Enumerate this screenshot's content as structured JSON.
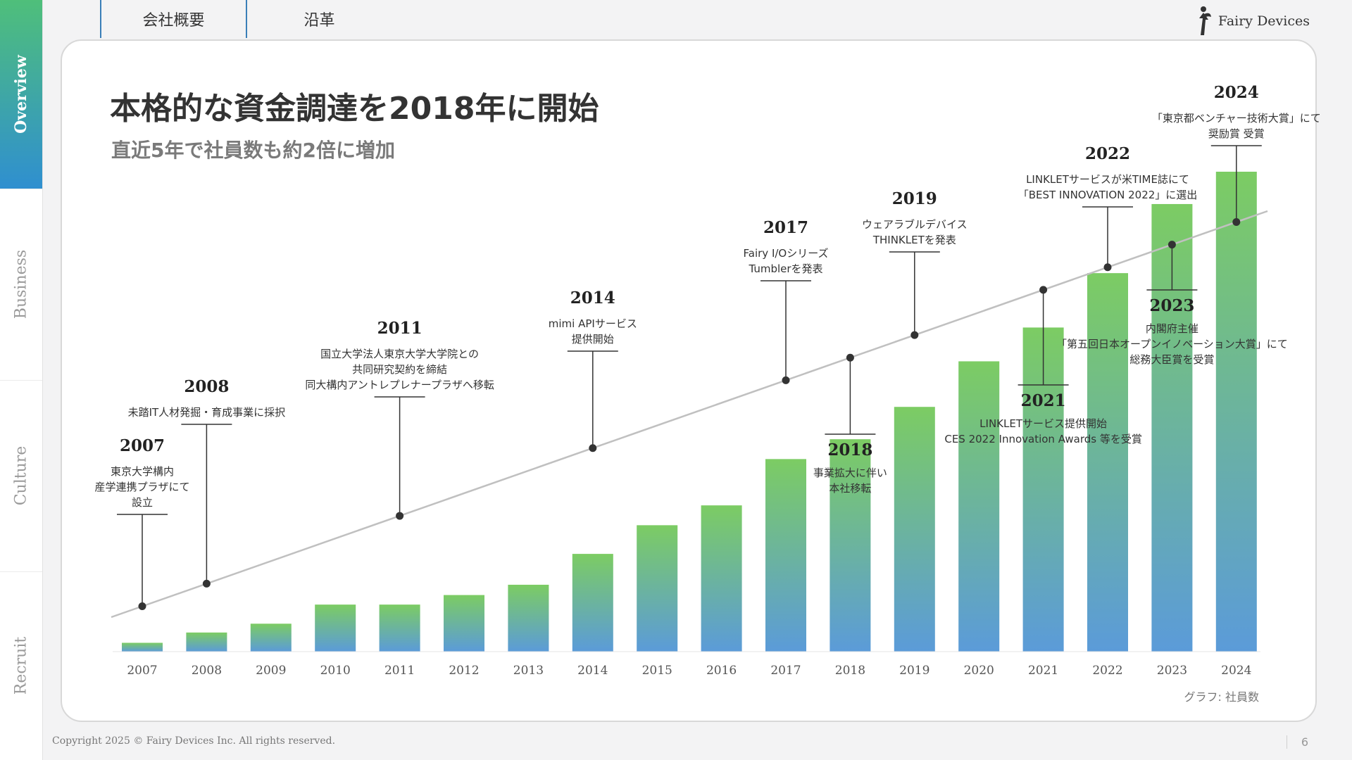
{
  "sidenav": {
    "items": [
      {
        "label": "Overview",
        "active": true
      },
      {
        "label": "Business",
        "active": false
      },
      {
        "label": "Culture",
        "active": false
      },
      {
        "label": "Recruit",
        "active": false
      }
    ]
  },
  "tabs": [
    {
      "label": "会社概要"
    },
    {
      "label": "沿革"
    }
  ],
  "logo": {
    "text": "Fairy Devices",
    "icon": "fairy-icon"
  },
  "slide": {
    "title": "本格的な資金調達を2018年に開始",
    "subtitle": "直近5年で社員数も約2倍に増加"
  },
  "chart_data": {
    "type": "bar",
    "categories": [
      "2007",
      "2008",
      "2009",
      "2010",
      "2011",
      "2012",
      "2013",
      "2014",
      "2015",
      "2016",
      "2017",
      "2018",
      "2019",
      "2020",
      "2021",
      "2022",
      "2023",
      "2024"
    ],
    "values": [
      12,
      26,
      38,
      64,
      64,
      77,
      91,
      133,
      172,
      199,
      262,
      289,
      333,
      395,
      441,
      515,
      609,
      653
    ],
    "ylim": [
      0,
      653
    ],
    "grid": false,
    "caption": "グラフ: 社員数",
    "colors": {
      "bar_top": "#7ccc63",
      "bar_bottom": "#5b9bd9",
      "trend_line": "#c0c0c0",
      "marker": "#333333"
    },
    "annotations": [
      {
        "year": "2007",
        "lines": [
          "東京大学構内",
          "産学連携プラザにて",
          "設立"
        ]
      },
      {
        "year": "2008",
        "lines": [
          "未踏IT人材発掘・育成事業に採択"
        ]
      },
      {
        "year": "2011",
        "lines": [
          "国立大学法人東京大学大学院との",
          "共同研究契約を締結",
          "同大構内アントレプレナープラザへ移転"
        ]
      },
      {
        "year": "2014",
        "lines": [
          "mimi APIサービス",
          "提供開始"
        ]
      },
      {
        "year": "2017",
        "lines": [
          "Fairy I/Oシリーズ",
          "Tumblerを発表"
        ]
      },
      {
        "year": "2018",
        "lines": [
          "事業拡大に伴い",
          "本社移転"
        ]
      },
      {
        "year": "2019",
        "lines": [
          "ウェアラブルデバイス",
          "THINKLETを発表"
        ]
      },
      {
        "year": "2021",
        "lines": [
          "LINKLETサービス提供開始",
          "CES 2022 Innovation Awards 等を受賞"
        ]
      },
      {
        "year": "2022",
        "lines": [
          "LINKLETサービスが米TIME誌にて",
          "「BEST INNOVATION 2022」に選出"
        ]
      },
      {
        "year": "2023",
        "lines": [
          "内閣府主催",
          "「第五回日本オープンイノベーション大賞」にて",
          "総務大臣賞を受賞"
        ]
      },
      {
        "year": "2024",
        "lines": [
          "「東京都ベンチャー技術大賞」にて",
          "奨励賞 受賞"
        ]
      }
    ]
  },
  "footer": {
    "copyright": "Copyright  2025 © Fairy Devices Inc. All rights reserved.",
    "page_number": "6"
  }
}
